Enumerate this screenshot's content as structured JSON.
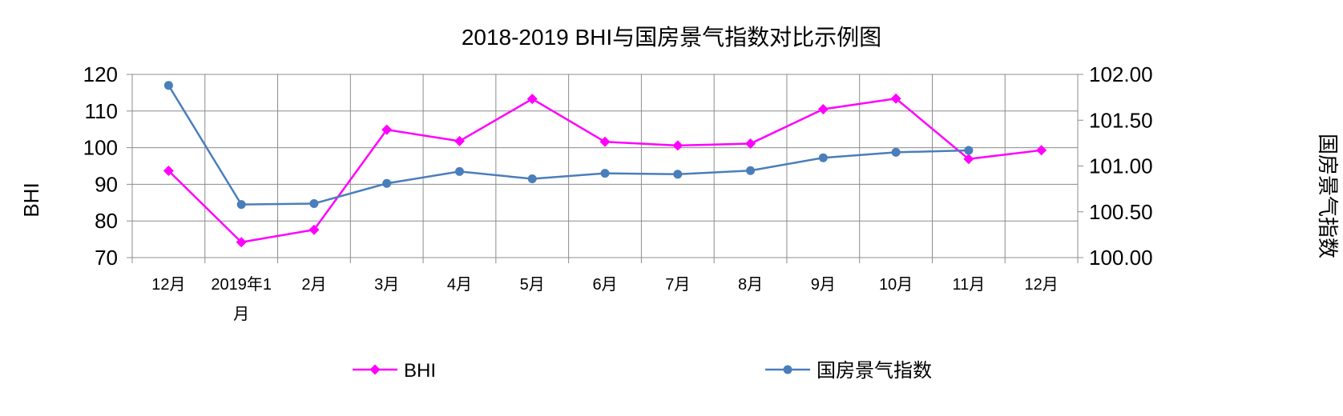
{
  "chart_data": {
    "type": "line",
    "title": "2018-2019 BHI与国房景气指数对比示例图",
    "ylabel": "BHI",
    "y2label": "国房景气指数",
    "categories": [
      "12月",
      "2019年1月",
      "2月",
      "3月",
      "4月",
      "5月",
      "6月",
      "7月",
      "8月",
      "9月",
      "10月",
      "11月",
      "12月"
    ],
    "ylim": [
      70,
      120
    ],
    "y_ticks": [
      "70",
      "80",
      "90",
      "100",
      "110",
      "120"
    ],
    "y2lim": [
      100.0,
      102.0
    ],
    "y2_ticks": [
      "100.00",
      "100.50",
      "101.00",
      "101.50",
      "102.00"
    ],
    "grid": true,
    "legend": "bottom",
    "series": [
      {
        "name": "BHI",
        "axis": "left",
        "color": "#FF00FF",
        "marker": "diamond",
        "values": [
          93.7,
          74.2,
          77.6,
          104.9,
          101.8,
          113.3,
          101.6,
          100.6,
          101.1,
          110.5,
          113.4,
          96.9,
          99.3
        ]
      },
      {
        "name": "国房景气指数",
        "axis": "right",
        "color": "#4A7EBB",
        "marker": "circle",
        "values": [
          101.88,
          100.58,
          100.59,
          100.81,
          100.94,
          100.86,
          100.92,
          100.91,
          100.95,
          101.09,
          101.15,
          101.17,
          null
        ]
      }
    ]
  }
}
